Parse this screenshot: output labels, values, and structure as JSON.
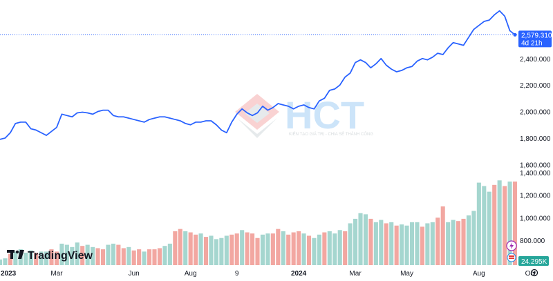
{
  "chart_data": {
    "type": "line",
    "series": [
      {
        "kind": "line",
        "color": "#2962ff",
        "values": [
          1790,
          1800,
          1840,
          1910,
          1920,
          1920,
          1870,
          1860,
          1840,
          1820,
          1850,
          1880,
          1980,
          1970,
          1960,
          1990,
          1995,
          1990,
          1980,
          2000,
          2010,
          2010,
          1970,
          1960,
          1960,
          1950,
          1940,
          1930,
          1920,
          1940,
          1950,
          1960,
          1960,
          1950,
          1940,
          1930,
          1910,
          1900,
          1920,
          1920,
          1930,
          1930,
          1900,
          1860,
          1840,
          1920,
          1980,
          2020,
          1990,
          1970,
          1990,
          2040,
          2010,
          2030,
          2060,
          2050,
          2040,
          2020,
          2040,
          2050,
          2030,
          2020,
          2080,
          2100,
          2160,
          2170,
          2200,
          2260,
          2290,
          2370,
          2390,
          2370,
          2330,
          2360,
          2400,
          2350,
          2320,
          2300,
          2310,
          2330,
          2340,
          2380,
          2400,
          2390,
          2410,
          2440,
          2430,
          2480,
          2520,
          2510,
          2500,
          2560,
          2620,
          2650,
          2680,
          2690,
          2730,
          2760,
          2720,
          2610,
          2579
        ]
      },
      {
        "kind": "volume",
        "up_color": "#a5d6cf",
        "down_color": "#f2a7a1",
        "values": [
          630,
          640,
          680,
          700,
          720,
          690,
          710,
          690,
          700,
          700,
          720,
          700,
          770,
          760,
          740,
          780,
          750,
          760,
          740,
          730,
          720,
          760,
          770,
          760,
          730,
          740,
          710,
          720,
          700,
          720,
          720,
          730,
          750,
          770,
          880,
          900,
          880,
          870,
          850,
          860,
          830,
          840,
          810,
          820,
          840,
          850,
          860,
          890,
          870,
          860,
          820,
          850,
          860,
          860,
          900,
          880,
          850,
          870,
          880,
          860,
          840,
          820,
          850,
          870,
          880,
          860,
          890,
          880,
          950,
          990,
          1040,
          1030,
          990,
          960,
          980,
          950,
          960,
          930,
          940,
          930,
          960,
          960,
          920,
          950,
          960,
          1000,
          1100,
          960,
          980,
          970,
          990,
          1020,
          1060,
          1310,
          1280,
          1230,
          1290,
          1330,
          1280,
          1320,
          1320
        ],
        "colors": [
          "up",
          "up",
          "down",
          "up",
          "up",
          "up",
          "up",
          "down",
          "up",
          "up",
          "down",
          "down",
          "up",
          "up",
          "up",
          "up",
          "down",
          "up",
          "up",
          "down",
          "down",
          "up",
          "up",
          "down",
          "down",
          "up",
          "down",
          "down",
          "up",
          "down",
          "down",
          "down",
          "up",
          "up",
          "down",
          "down",
          "up",
          "down",
          "down",
          "up",
          "down",
          "up",
          "up",
          "up",
          "up",
          "down",
          "down",
          "up",
          "down",
          "down",
          "down",
          "up",
          "up",
          "down",
          "down",
          "up",
          "down",
          "down",
          "down",
          "up",
          "down",
          "up",
          "up",
          "down",
          "up",
          "up",
          "up",
          "down",
          "up",
          "up",
          "up",
          "up",
          "down",
          "up",
          "up",
          "down",
          "up",
          "down",
          "up",
          "up",
          "up",
          "up",
          "down",
          "up",
          "up",
          "down",
          "down",
          "up",
          "up",
          "down",
          "down",
          "up",
          "up",
          "up",
          "up",
          "up",
          "down",
          "up",
          "down",
          "up",
          "down"
        ]
      }
    ],
    "x_ticks": [
      {
        "label": "2023",
        "i": 0,
        "bold": true
      },
      {
        "label": "Mar",
        "i": 11
      },
      {
        "label": "Jun",
        "i": 26
      },
      {
        "label": "Aug",
        "i": 37
      },
      {
        "label": "9",
        "i": 46
      },
      {
        "label": "2024",
        "i": 58,
        "bold": true
      },
      {
        "label": "Mar",
        "i": 69
      },
      {
        "label": "May",
        "i": 79
      },
      {
        "label": "Aug",
        "i": 93
      },
      {
        "label": "Oct",
        "i": 103
      }
    ],
    "ylim": [
      1560,
      2800
    ],
    "y_ticks": [
      1600,
      1800,
      2000,
      2200,
      2400
    ],
    "y_tick_labels": [
      "1,600.000",
      "1,800.000",
      "2,000.000",
      "2,200.000",
      "2,400.000"
    ],
    "volume_ylim": [
      580,
      1460
    ],
    "volume_ticks": [
      800,
      1000,
      1200,
      1400
    ],
    "volume_tick_labels": [
      "800.000",
      "1,000.000",
      "1,200.000",
      "1,400.000"
    ],
    "last_price": {
      "value": 2579.31,
      "label": "2,579.310",
      "countdown": "4d 21h",
      "color": "#2962ff"
    },
    "last_volume": {
      "label": "24.295K",
      "color": "#26a69a"
    },
    "grid": false
  },
  "watermark": {
    "text": "HCT",
    "tagline": "KIẾN TẠO GIÁ TRỊ - CHIA SẺ THÀNH CÔNG"
  },
  "branding": {
    "logo_text": "TradingView"
  },
  "toolbar": {
    "icons": [
      "gear-icon"
    ]
  }
}
